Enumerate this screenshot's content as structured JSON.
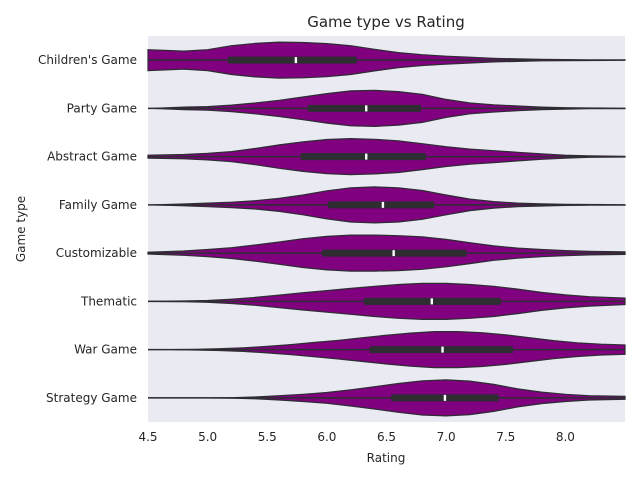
{
  "chart_data": {
    "type": "violin",
    "orientation": "horizontal",
    "title": "Game type vs Rating",
    "xlabel": "Rating",
    "ylabel": "Game type",
    "xlim": [
      4.5,
      8.5
    ],
    "xticks": [
      4.5,
      5.0,
      5.5,
      6.0,
      6.5,
      7.0,
      7.5,
      8.0
    ],
    "xtick_labels": [
      "4.5",
      "5.0",
      "5.5",
      "6.0",
      "6.5",
      "7.0",
      "7.5",
      "8.0"
    ],
    "grid": false,
    "background": "#eaeaf2",
    "violin_color": "#800080",
    "box_color": "#2d2d32",
    "median_color": "#ffffff",
    "categories": [
      "Children's Game",
      "Party Game",
      "Abstract Game",
      "Family Game",
      "Customizable",
      "Thematic",
      "War Game",
      "Strategy Game"
    ],
    "series": [
      {
        "category": "Children's Game",
        "q1": 5.17,
        "median": 5.74,
        "q3": 6.25,
        "whisker_high": 7.79,
        "density_x": [
          4.5,
          4.8,
          5.0,
          5.2,
          5.4,
          5.6,
          5.8,
          6.0,
          6.2,
          6.4,
          6.6,
          6.8,
          7.0,
          7.2,
          7.4,
          7.6,
          7.8,
          8.0,
          8.2,
          8.5
        ],
        "density_w": [
          0.58,
          0.5,
          0.58,
          0.8,
          0.93,
          1.0,
          0.98,
          0.92,
          0.8,
          0.6,
          0.42,
          0.3,
          0.22,
          0.16,
          0.1,
          0.07,
          0.04,
          0.03,
          0.02,
          0.01
        ]
      },
      {
        "category": "Party Game",
        "q1": 5.84,
        "median": 6.33,
        "q3": 6.79,
        "whisker_high": 8.07,
        "density_x": [
          4.55,
          4.8,
          5.0,
          5.2,
          5.4,
          5.6,
          5.8,
          6.0,
          6.2,
          6.4,
          6.6,
          6.8,
          7.0,
          7.2,
          7.4,
          7.6,
          7.8,
          8.0,
          8.2,
          8.5
        ],
        "density_w": [
          0.0,
          0.07,
          0.1,
          0.18,
          0.3,
          0.45,
          0.63,
          0.82,
          0.97,
          1.0,
          0.93,
          0.78,
          0.5,
          0.3,
          0.2,
          0.13,
          0.07,
          0.04,
          0.02,
          0.01
        ]
      },
      {
        "category": "Abstract Game",
        "q1": 5.78,
        "median": 6.33,
        "q3": 6.83,
        "whisker_high": 8.27,
        "density_x": [
          4.5,
          4.8,
          5.0,
          5.2,
          5.4,
          5.6,
          5.8,
          6.0,
          6.2,
          6.4,
          6.6,
          6.8,
          7.0,
          7.2,
          7.4,
          7.6,
          7.8,
          8.0,
          8.2,
          8.5
        ],
        "density_w": [
          0.08,
          0.12,
          0.18,
          0.28,
          0.45,
          0.65,
          0.82,
          0.95,
          1.0,
          0.96,
          0.88,
          0.72,
          0.55,
          0.42,
          0.33,
          0.24,
          0.15,
          0.08,
          0.04,
          0.02
        ]
      },
      {
        "category": "Family Game",
        "q1": 6.01,
        "median": 6.47,
        "q3": 6.9,
        "whisker_high": 8.18,
        "density_x": [
          4.55,
          4.8,
          5.0,
          5.2,
          5.4,
          5.6,
          5.8,
          6.0,
          6.2,
          6.4,
          6.6,
          6.8,
          7.0,
          7.2,
          7.4,
          7.6,
          7.8,
          8.0,
          8.2,
          8.5
        ],
        "density_w": [
          0.0,
          0.05,
          0.1,
          0.15,
          0.23,
          0.36,
          0.55,
          0.78,
          0.95,
          1.0,
          0.95,
          0.8,
          0.55,
          0.32,
          0.18,
          0.1,
          0.06,
          0.03,
          0.02,
          0.01
        ]
      },
      {
        "category": "Customizable",
        "q1": 5.96,
        "median": 6.56,
        "q3": 7.17,
        "whisker_high": 8.5,
        "density_x": [
          4.5,
          4.8,
          5.0,
          5.2,
          5.4,
          5.6,
          5.8,
          6.0,
          6.2,
          6.4,
          6.6,
          6.8,
          7.0,
          7.2,
          7.4,
          7.6,
          7.8,
          8.0,
          8.2,
          8.5
        ],
        "density_w": [
          0.05,
          0.12,
          0.2,
          0.3,
          0.45,
          0.62,
          0.8,
          0.93,
          1.0,
          1.0,
          0.97,
          0.9,
          0.76,
          0.58,
          0.4,
          0.28,
          0.2,
          0.14,
          0.1,
          0.07
        ]
      },
      {
        "category": "Thematic",
        "q1": 6.31,
        "median": 6.88,
        "q3": 7.46,
        "whisker_high": 8.5,
        "density_x": [
          4.5,
          4.8,
          5.0,
          5.2,
          5.4,
          5.6,
          5.8,
          6.0,
          6.2,
          6.4,
          6.6,
          6.8,
          7.0,
          7.2,
          7.4,
          7.6,
          7.8,
          8.0,
          8.2,
          8.5
        ],
        "density_w": [
          0.0,
          0.02,
          0.05,
          0.12,
          0.22,
          0.35,
          0.48,
          0.6,
          0.72,
          0.84,
          0.94,
          1.0,
          1.0,
          0.94,
          0.84,
          0.68,
          0.5,
          0.36,
          0.26,
          0.18
        ]
      },
      {
        "category": "War Game",
        "q1": 6.36,
        "median": 6.97,
        "q3": 7.56,
        "whisker_high": 8.5,
        "density_x": [
          4.72,
          4.9,
          5.1,
          5.3,
          5.5,
          5.7,
          5.9,
          6.1,
          6.3,
          6.5,
          6.7,
          6.9,
          7.1,
          7.3,
          7.5,
          7.7,
          7.9,
          8.1,
          8.3,
          8.5
        ],
        "density_w": [
          0.0,
          0.02,
          0.05,
          0.1,
          0.18,
          0.28,
          0.4,
          0.52,
          0.66,
          0.8,
          0.92,
          1.0,
          1.0,
          0.94,
          0.82,
          0.66,
          0.5,
          0.38,
          0.3,
          0.26
        ]
      },
      {
        "category": "Strategy Game",
        "q1": 6.54,
        "median": 6.99,
        "q3": 7.44,
        "whisker_high": 8.5,
        "density_x": [
          4.5,
          4.8,
          5.0,
          5.2,
          5.4,
          5.6,
          5.8,
          6.0,
          6.2,
          6.4,
          6.6,
          6.8,
          7.0,
          7.2,
          7.4,
          7.6,
          7.8,
          8.0,
          8.2,
          8.5
        ],
        "density_w": [
          0.0,
          0.0,
          0.0,
          0.01,
          0.05,
          0.12,
          0.2,
          0.3,
          0.45,
          0.62,
          0.8,
          0.95,
          1.0,
          0.93,
          0.75,
          0.5,
          0.32,
          0.2,
          0.12,
          0.08
        ]
      }
    ]
  }
}
